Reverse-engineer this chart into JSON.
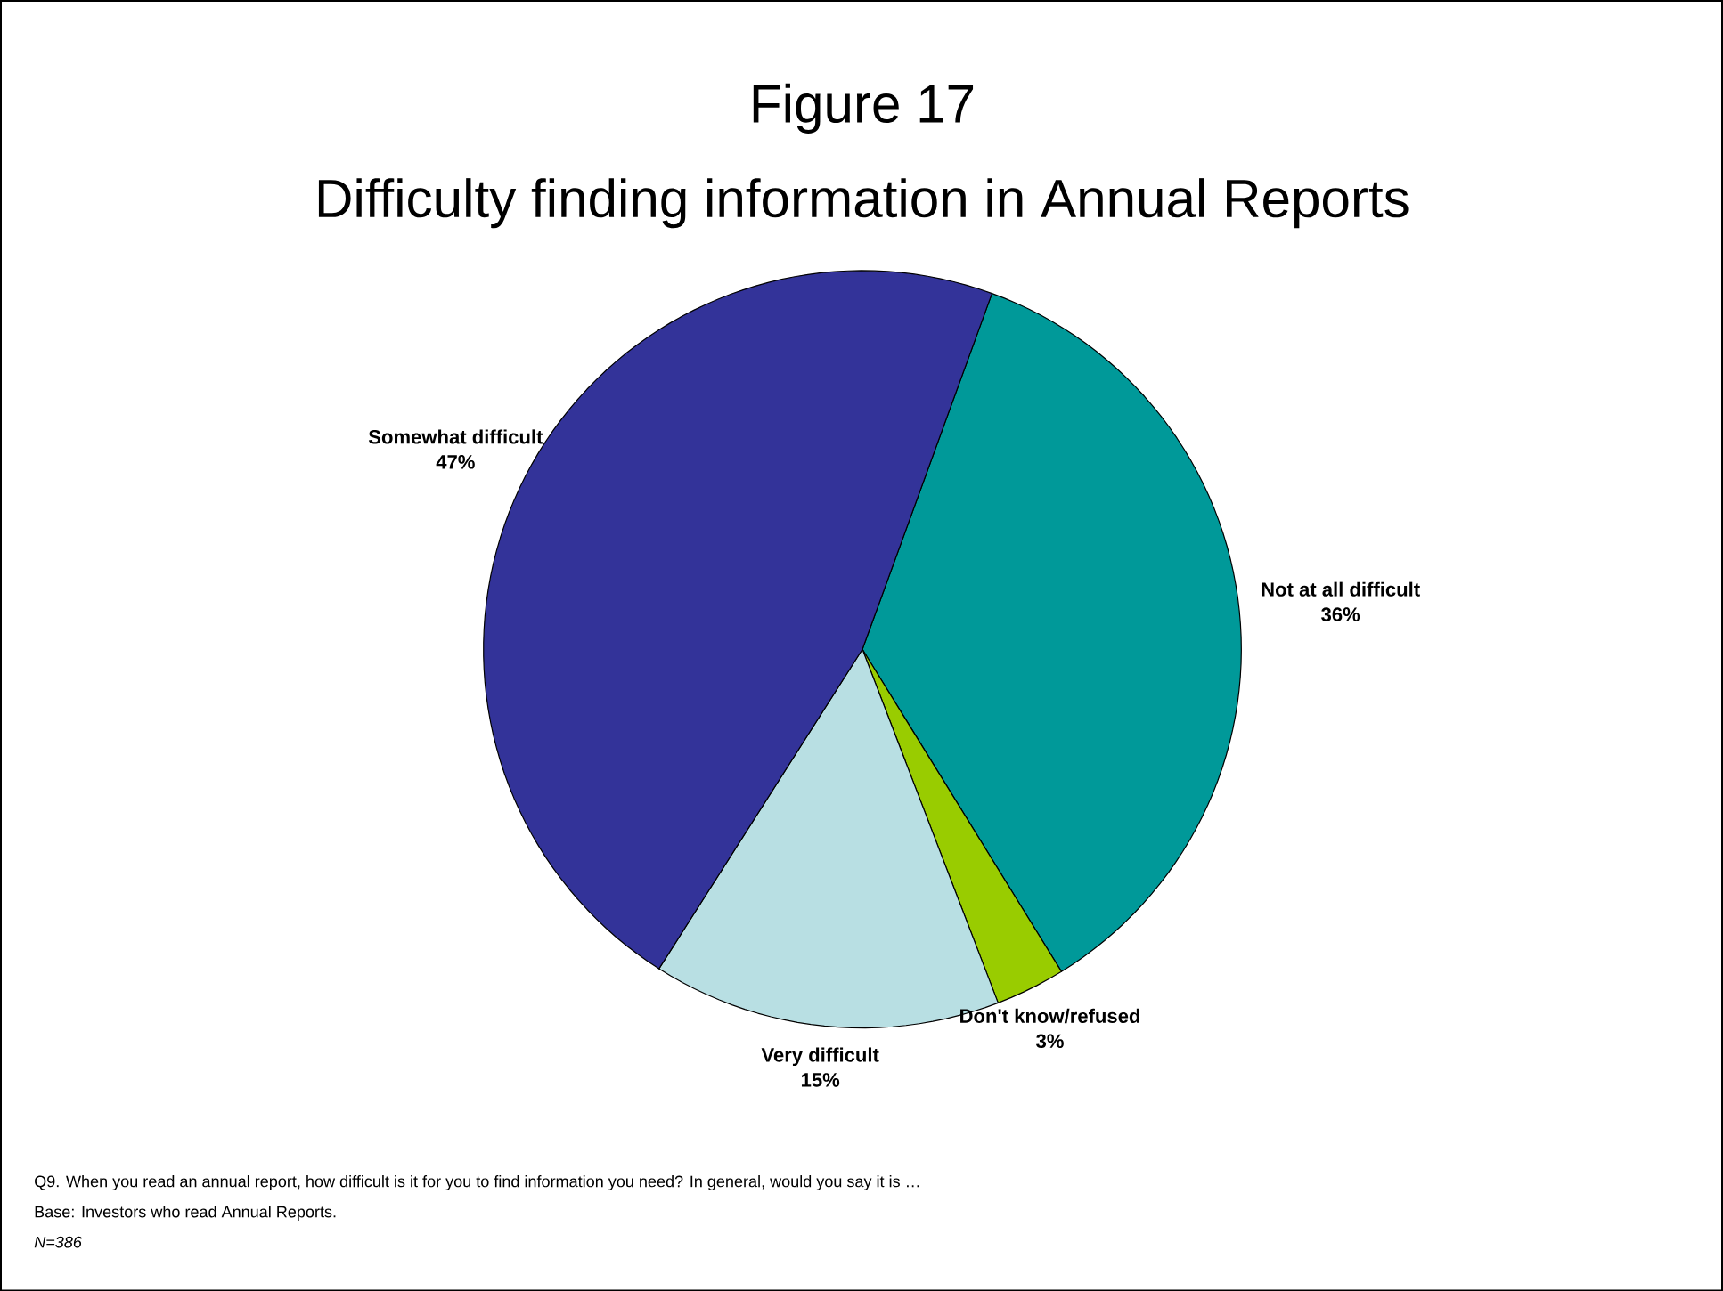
{
  "chart_data": {
    "type": "pie",
    "title": "Figure 17",
    "subtitle": "Difficulty finding information in Annual Reports",
    "categories": [
      "Not at all difficult",
      "Don't know/refused",
      "Very difficult",
      "Somewhat difficult"
    ],
    "values": [
      36,
      3,
      15,
      47
    ],
    "colors": [
      "#009999",
      "#99cc00",
      "#b8dfe3",
      "#333399"
    ],
    "value_labels": [
      "36%",
      "3%",
      "15%",
      "47%"
    ],
    "annotations": [
      "Q9. When you read an annual report, how difficult is it for you to find information you need?  In general, would you say it is …",
      "Base: Investors who read Annual Reports.",
      "N=386"
    ]
  }
}
